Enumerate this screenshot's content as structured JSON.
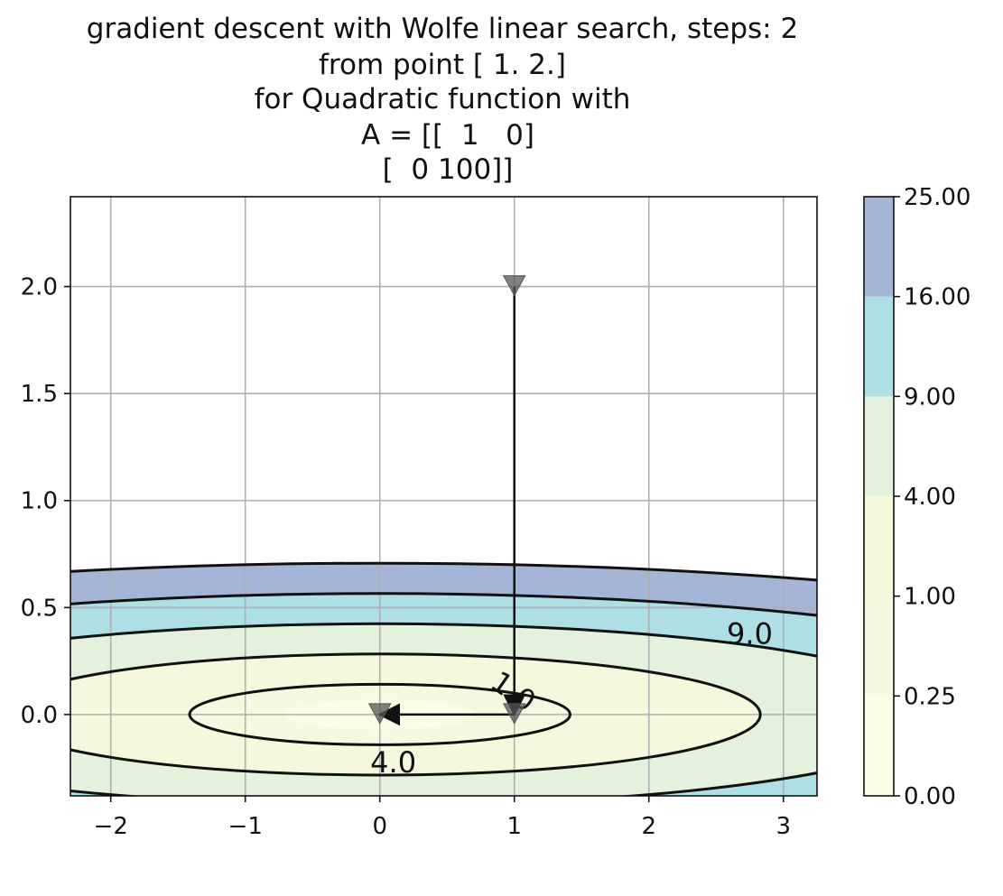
{
  "chart_data": {
    "type": "contour",
    "title_lines": [
      "gradient descent with Wolfe linear search, steps: 2",
      "from point [ 1.  2.]",
      "for Quadratic function with",
      "A = [[  1   0]",
      "[  0 100]]"
    ],
    "xlim": [
      -2.3,
      3.25
    ],
    "ylim": [
      -0.38,
      2.42
    ],
    "x_ticks": [
      {
        "value": -2,
        "label": "−2"
      },
      {
        "value": -1,
        "label": "−1"
      },
      {
        "value": 0,
        "label": "0"
      },
      {
        "value": 1,
        "label": "1"
      },
      {
        "value": 2,
        "label": "2"
      },
      {
        "value": 3,
        "label": "3"
      }
    ],
    "y_ticks": [
      {
        "value": 0.0,
        "label": "0.0"
      },
      {
        "value": 0.5,
        "label": "0.5"
      },
      {
        "value": 1.0,
        "label": "1.0"
      },
      {
        "value": 1.5,
        "label": "1.5"
      },
      {
        "value": 2.0,
        "label": "2.0"
      }
    ],
    "grid": true,
    "function": {
      "a11": 1,
      "a22": 100,
      "scale": 0.5
    },
    "levels": [
      0.0,
      0.25,
      1.0,
      4.0,
      9.0,
      16.0,
      25.0
    ],
    "level_colors": [
      "#fbfde6",
      "#f6f9e2",
      "#f4f8dd",
      "#e3f1dd",
      "#addfe4",
      "#a5b5d8"
    ],
    "colorbar_labels": [
      "0.00",
      "0.25",
      "1.00",
      "4.00",
      "9.00",
      "16.00",
      "25.00"
    ],
    "contour_line_levels": [
      1.0,
      4.0,
      9.0,
      16.0,
      25.0
    ],
    "contour_labels": [
      {
        "text": "1.0",
        "x": 0.95,
        "y": 0.07,
        "rotation": 35
      },
      {
        "text": "4.0",
        "x": 0.1,
        "y": -0.27,
        "rotation": 0
      },
      {
        "text": "9.0",
        "x": 2.75,
        "y": 0.33,
        "rotation": 0
      }
    ],
    "path": [
      {
        "x": 1.0,
        "y": 2.0
      },
      {
        "x": 1.0,
        "y": 0.0
      },
      {
        "x": 0.0,
        "y": 0.0
      }
    ]
  }
}
